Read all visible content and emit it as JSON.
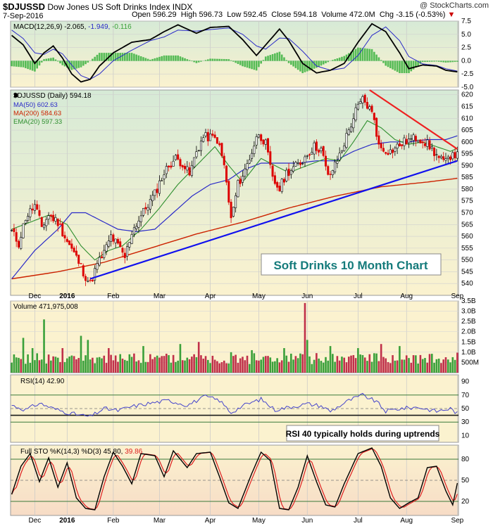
{
  "header": {
    "symbol": "$DJUSSD",
    "name": "Dow Jones US Soft Drinks Index",
    "exchange": "INDX",
    "copyright": "@ StockCharts.com",
    "date": "7-Sep-2016",
    "open_label": "Open",
    "open": "596.29",
    "high_label": "High",
    "high": "596.73",
    "low_label": "Low",
    "low": "592.45",
    "close_label": "Close",
    "close": "594.18",
    "volume_label": "Volume",
    "volume": "472.0M",
    "chg_label": "Chg",
    "chg": "-3.15 (-0.53%)",
    "down_marker": "▼"
  },
  "colors": {
    "panel_bg": "#fbf2cf",
    "top_fade": "#d6ead6",
    "sto_bg": "#f7dcc6",
    "price": "#000000",
    "ma50": "#2a2ac8",
    "ma200": "#cc2200",
    "ema20": "#2f8f2f",
    "trend_up": "#1010ee",
    "trend_down": "#ee2020",
    "vol_up": "#3aa03a",
    "vol_down": "#c0304a",
    "macd_hist": "#55bb55"
  },
  "x_axis": {
    "months": [
      {
        "label": "Dec",
        "i": 10
      },
      {
        "label": "2016",
        "i": 24,
        "bold": true
      },
      {
        "label": "Feb",
        "i": 44
      },
      {
        "label": "Mar",
        "i": 64
      },
      {
        "label": "Apr",
        "i": 86
      },
      {
        "label": "May",
        "i": 107
      },
      {
        "label": "Jun",
        "i": 128
      },
      {
        "label": "Jul",
        "i": 150
      },
      {
        "label": "Aug",
        "i": 171
      },
      {
        "label": "Sep",
        "i": 193
      }
    ]
  },
  "chart_data": [
    {
      "type": "line",
      "panel": "MACD",
      "label": "MACD(12,26,9)",
      "values_text": {
        "macd": "-2.065",
        "signal": "-1.949",
        "hist": "-0.116"
      },
      "ylim": [
        -5.0,
        7.5
      ],
      "yticks": [
        "7.5",
        "5.0",
        "2.5",
        "0.0",
        "-2.5",
        "-5.0"
      ],
      "keypoints_macd": [
        [
          0,
          4.8
        ],
        [
          5,
          3.0
        ],
        [
          10,
          -0.5
        ],
        [
          14,
          1.5
        ],
        [
          18,
          2.8
        ],
        [
          22,
          0.5
        ],
        [
          26,
          -2.5
        ],
        [
          30,
          -4.0
        ],
        [
          34,
          -3.5
        ],
        [
          38,
          -1.0
        ],
        [
          44,
          1.5
        ],
        [
          52,
          3.5
        ],
        [
          60,
          4.0
        ],
        [
          66,
          5.5
        ],
        [
          72,
          6.8
        ],
        [
          80,
          5.2
        ],
        [
          86,
          6.3
        ],
        [
          94,
          6.5
        ],
        [
          100,
          4.0
        ],
        [
          106,
          1.0
        ],
        [
          110,
          3.0
        ],
        [
          116,
          6.0
        ],
        [
          120,
          3.8
        ],
        [
          126,
          -0.5
        ],
        [
          132,
          -2.3
        ],
        [
          138,
          -1.8
        ],
        [
          144,
          -0.5
        ],
        [
          150,
          3.5
        ],
        [
          156,
          7.0
        ],
        [
          162,
          5.5
        ],
        [
          168,
          1.5
        ],
        [
          172,
          -1.5
        ],
        [
          178,
          -0.8
        ],
        [
          184,
          -1.0
        ],
        [
          188,
          -1.8
        ],
        [
          193,
          -2.1
        ]
      ],
      "keypoints_signal": [
        [
          0,
          5.8
        ],
        [
          5,
          4.2
        ],
        [
          10,
          1.5
        ],
        [
          14,
          1.2
        ],
        [
          18,
          2.2
        ],
        [
          22,
          1.3
        ],
        [
          26,
          -0.8
        ],
        [
          30,
          -2.8
        ],
        [
          34,
          -3.5
        ],
        [
          38,
          -2.5
        ],
        [
          44,
          0.0
        ],
        [
          52,
          2.0
        ],
        [
          60,
          3.8
        ],
        [
          66,
          4.5
        ],
        [
          72,
          5.8
        ],
        [
          80,
          5.6
        ],
        [
          86,
          5.9
        ],
        [
          94,
          6.2
        ],
        [
          100,
          5.0
        ],
        [
          106,
          2.8
        ],
        [
          110,
          2.2
        ],
        [
          116,
          4.3
        ],
        [
          120,
          4.2
        ],
        [
          126,
          1.8
        ],
        [
          132,
          -1.0
        ],
        [
          138,
          -1.8
        ],
        [
          144,
          -1.4
        ],
        [
          150,
          1.0
        ],
        [
          156,
          4.8
        ],
        [
          162,
          6.4
        ],
        [
          168,
          3.8
        ],
        [
          172,
          0.8
        ],
        [
          178,
          -0.6
        ],
        [
          184,
          -0.9
        ],
        [
          188,
          -1.5
        ],
        [
          193,
          -1.95
        ]
      ]
    },
    {
      "type": "line",
      "panel": "Price",
      "label": "$DJUSSD (Daily)",
      "last": "594.18",
      "legend": [
        {
          "name": "MA(50)",
          "value": "602.63",
          "color": "#2a2ac8"
        },
        {
          "name": "MA(200)",
          "value": "584.63",
          "color": "#cc2200"
        },
        {
          "name": "EMA(20)",
          "value": "597.33",
          "color": "#2f8f2f"
        }
      ],
      "ylim": [
        535,
        622
      ],
      "yticks": [
        "620",
        "615",
        "610",
        "605",
        "600",
        "595",
        "590",
        "585",
        "580",
        "575",
        "570",
        "565",
        "560",
        "555",
        "550",
        "545",
        "540"
      ],
      "keypoints_close": [
        [
          0,
          562
        ],
        [
          3,
          557
        ],
        [
          6,
          568
        ],
        [
          10,
          573
        ],
        [
          13,
          564
        ],
        [
          16,
          569
        ],
        [
          20,
          566
        ],
        [
          24,
          558
        ],
        [
          28,
          551
        ],
        [
          32,
          543
        ],
        [
          34,
          540
        ],
        [
          37,
          548
        ],
        [
          40,
          553
        ],
        [
          43,
          560
        ],
        [
          46,
          556
        ],
        [
          49,
          551
        ],
        [
          52,
          562
        ],
        [
          55,
          567
        ],
        [
          58,
          572
        ],
        [
          62,
          578
        ],
        [
          65,
          585
        ],
        [
          68,
          590
        ],
        [
          71,
          593
        ],
        [
          74,
          591
        ],
        [
          77,
          586
        ],
        [
          80,
          596
        ],
        [
          83,
          602
        ],
        [
          86,
          602
        ],
        [
          89,
          601
        ],
        [
          92,
          590
        ],
        [
          95,
          567
        ],
        [
          98,
          582
        ],
        [
          101,
          588
        ],
        [
          104,
          596
        ],
        [
          107,
          604
        ],
        [
          110,
          599
        ],
        [
          113,
          584
        ],
        [
          116,
          580
        ],
        [
          119,
          587
        ],
        [
          122,
          589
        ],
        [
          125,
          591
        ],
        [
          128,
          595
        ],
        [
          131,
          598
        ],
        [
          134,
          597
        ],
        [
          137,
          585
        ],
        [
          140,
          590
        ],
        [
          143,
          597
        ],
        [
          146,
          605
        ],
        [
          149,
          613
        ],
        [
          152,
          618
        ],
        [
          155,
          614
        ],
        [
          157,
          610
        ],
        [
          159,
          598
        ],
        [
          161,
          597
        ],
        [
          164,
          596
        ],
        [
          167,
          598
        ],
        [
          170,
          600
        ],
        [
          173,
          601
        ],
        [
          176,
          602
        ],
        [
          179,
          600
        ],
        [
          182,
          597
        ],
        [
          185,
          593
        ],
        [
          188,
          591
        ],
        [
          191,
          596
        ],
        [
          193,
          594
        ]
      ],
      "keypoints_ma50": [
        [
          0,
          542
        ],
        [
          10,
          554
        ],
        [
          20,
          563
        ],
        [
          26,
          570
        ],
        [
          32,
          570
        ],
        [
          40,
          566
        ],
        [
          46,
          563
        ],
        [
          54,
          562
        ],
        [
          62,
          563
        ],
        [
          70,
          570
        ],
        [
          78,
          577
        ],
        [
          86,
          582
        ],
        [
          94,
          584
        ],
        [
          100,
          588
        ],
        [
          108,
          591
        ],
        [
          116,
          591
        ],
        [
          124,
          591
        ],
        [
          132,
          592
        ],
        [
          140,
          592
        ],
        [
          148,
          596
        ],
        [
          156,
          599
        ],
        [
          164,
          600
        ],
        [
          172,
          600
        ],
        [
          180,
          601
        ],
        [
          188,
          601
        ],
        [
          193,
          602.6
        ]
      ],
      "keypoints_ma200": [
        [
          0,
          542
        ],
        [
          20,
          545
        ],
        [
          40,
          549
        ],
        [
          60,
          555
        ],
        [
          80,
          561
        ],
        [
          100,
          566
        ],
        [
          120,
          572
        ],
        [
          140,
          577
        ],
        [
          160,
          581
        ],
        [
          180,
          583
        ],
        [
          193,
          584.6
        ]
      ],
      "keypoints_ema20": [
        [
          0,
          563
        ],
        [
          8,
          566
        ],
        [
          16,
          569
        ],
        [
          24,
          565
        ],
        [
          30,
          556
        ],
        [
          36,
          550
        ],
        [
          42,
          554
        ],
        [
          48,
          556
        ],
        [
          56,
          563
        ],
        [
          64,
          572
        ],
        [
          72,
          582
        ],
        [
          80,
          590
        ],
        [
          88,
          598
        ],
        [
          94,
          590
        ],
        [
          100,
          583
        ],
        [
          108,
          593
        ],
        [
          114,
          590
        ],
        [
          120,
          587
        ],
        [
          128,
          590
        ],
        [
          136,
          593
        ],
        [
          142,
          592
        ],
        [
          148,
          600
        ],
        [
          154,
          609
        ],
        [
          160,
          606
        ],
        [
          166,
          601
        ],
        [
          172,
          599
        ],
        [
          178,
          600
        ],
        [
          184,
          598
        ],
        [
          190,
          596
        ],
        [
          193,
          597.3
        ]
      ],
      "trendlines": [
        {
          "from": [
            34,
            542
          ],
          "to": [
            193,
            592
          ],
          "color": "trend_up"
        },
        {
          "from": [
            155,
            622
          ],
          "to": [
            193,
            597
          ],
          "color": "trend_down"
        }
      ],
      "annotation": "Soft Drinks 10 Month Chart"
    },
    {
      "type": "bar",
      "panel": "Volume",
      "label": "Volume 471,975,008",
      "ylim": [
        0,
        3.5
      ],
      "yticks": [
        "3.5B",
        "3.0B",
        "2.5B",
        "2.0B",
        "1.5B",
        "1.0B",
        "500M"
      ],
      "typical": 0.7,
      "spikes": [
        [
          5,
          1.7
        ],
        [
          9,
          1.2
        ],
        [
          14,
          2.6
        ],
        [
          22,
          1.2
        ],
        [
          30,
          1.8
        ],
        [
          33,
          1.6
        ],
        [
          42,
          1.2
        ],
        [
          57,
          1.3
        ],
        [
          73,
          1.4
        ],
        [
          81,
          1.5
        ],
        [
          95,
          1.0
        ],
        [
          104,
          1.1
        ],
        [
          118,
          1.2
        ],
        [
          127,
          3.4
        ],
        [
          128,
          1.6
        ],
        [
          138,
          1.3
        ],
        [
          150,
          1.2
        ],
        [
          160,
          1.4
        ],
        [
          168,
          1.3
        ]
      ]
    },
    {
      "type": "line",
      "panel": "RSI",
      "label": "RSI(14)",
      "value": "42.90",
      "ylim": [
        0,
        100
      ],
      "yticks": [
        "90",
        "70",
        "50",
        "30",
        "10"
      ],
      "keypoints": [
        [
          0,
          55
        ],
        [
          6,
          48
        ],
        [
          12,
          58
        ],
        [
          18,
          50
        ],
        [
          24,
          44
        ],
        [
          30,
          40
        ],
        [
          34,
          38
        ],
        [
          40,
          50
        ],
        [
          46,
          47
        ],
        [
          52,
          53
        ],
        [
          60,
          58
        ],
        [
          68,
          62
        ],
        [
          76,
          55
        ],
        [
          84,
          68
        ],
        [
          90,
          62
        ],
        [
          95,
          44
        ],
        [
          100,
          54
        ],
        [
          108,
          64
        ],
        [
          114,
          48
        ],
        [
          120,
          52
        ],
        [
          128,
          57
        ],
        [
          134,
          54
        ],
        [
          138,
          46
        ],
        [
          146,
          62
        ],
        [
          152,
          70
        ],
        [
          158,
          60
        ],
        [
          162,
          46
        ],
        [
          168,
          50
        ],
        [
          176,
          52
        ],
        [
          184,
          46
        ],
        [
          190,
          50
        ],
        [
          193,
          43
        ]
      ],
      "annotation": "RSI 40 typically holds during uptrends"
    },
    {
      "type": "line",
      "panel": "STO",
      "label": "Full STO %K(14,3) %D(3)",
      "values_text": {
        "k": "45.80",
        "d": "39.86"
      },
      "ylim": [
        0,
        100
      ],
      "yticks": [
        "80",
        "50",
        "20"
      ],
      "keypoints_k": [
        [
          0,
          30
        ],
        [
          4,
          70
        ],
        [
          8,
          88
        ],
        [
          12,
          48
        ],
        [
          16,
          82
        ],
        [
          20,
          40
        ],
        [
          24,
          75
        ],
        [
          28,
          25
        ],
        [
          32,
          10
        ],
        [
          36,
          8
        ],
        [
          40,
          55
        ],
        [
          44,
          90
        ],
        [
          48,
          70
        ],
        [
          52,
          45
        ],
        [
          56,
          88
        ],
        [
          62,
          85
        ],
        [
          66,
          55
        ],
        [
          70,
          92
        ],
        [
          76,
          68
        ],
        [
          80,
          88
        ],
        [
          86,
          90
        ],
        [
          90,
          55
        ],
        [
          94,
          18
        ],
        [
          98,
          10
        ],
        [
          104,
          60
        ],
        [
          108,
          90
        ],
        [
          112,
          78
        ],
        [
          116,
          10
        ],
        [
          120,
          8
        ],
        [
          124,
          40
        ],
        [
          128,
          85
        ],
        [
          132,
          48
        ],
        [
          136,
          15
        ],
        [
          140,
          12
        ],
        [
          144,
          45
        ],
        [
          150,
          88
        ],
        [
          156,
          96
        ],
        [
          160,
          70
        ],
        [
          164,
          25
        ],
        [
          168,
          10
        ],
        [
          172,
          18
        ],
        [
          176,
          25
        ],
        [
          180,
          68
        ],
        [
          184,
          70
        ],
        [
          188,
          35
        ],
        [
          191,
          15
        ],
        [
          193,
          46
        ]
      ]
    }
  ]
}
